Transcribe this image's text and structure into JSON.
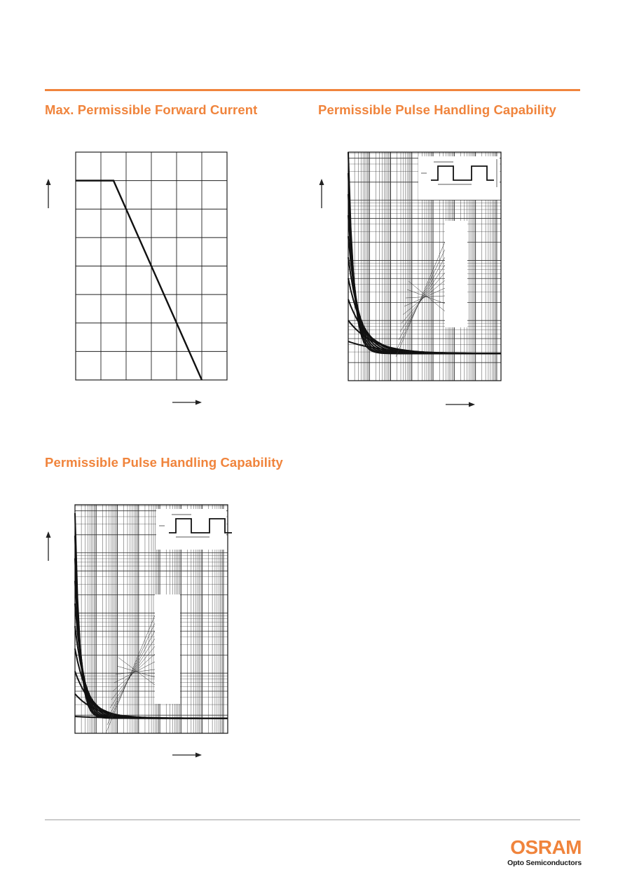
{
  "brand_color": "#f0843c",
  "charts": [
    {
      "title": "Max. Permissible Forward Current",
      "chart_data": {
        "type": "line",
        "title": "Max. Permissible Forward Current",
        "xlabel": "",
        "ylabel": "",
        "x_divisions": 6,
        "y_divisions": 8,
        "grid": true,
        "xlim": [
          0,
          6
        ],
        "ylim": [
          0,
          8
        ],
        "series": [
          {
            "x": [
              0,
              1.5,
              5
            ],
            "y": [
              7,
              7,
              0
            ]
          }
        ]
      }
    },
    {
      "title": "Permissible Pulse Handling Capability",
      "chart_data": {
        "type": "line",
        "title": "Permissible Pulse Handling Capability",
        "xlabel": "",
        "ylabel": "",
        "xscale": "log",
        "yscale": "log",
        "grid": true,
        "curve_count": 10,
        "inset": "pulse-waveform"
      }
    },
    {
      "title": "Permissible Pulse Handling Capability",
      "chart_data": {
        "type": "line",
        "title": "Permissible Pulse Handling Capability",
        "xlabel": "",
        "ylabel": "",
        "xscale": "log",
        "yscale": "log",
        "grid": true,
        "curve_count": 10,
        "inset": "pulse-waveform"
      }
    }
  ],
  "logo": {
    "word": "OSRAM",
    "subtitle": "Opto Semiconductors"
  }
}
